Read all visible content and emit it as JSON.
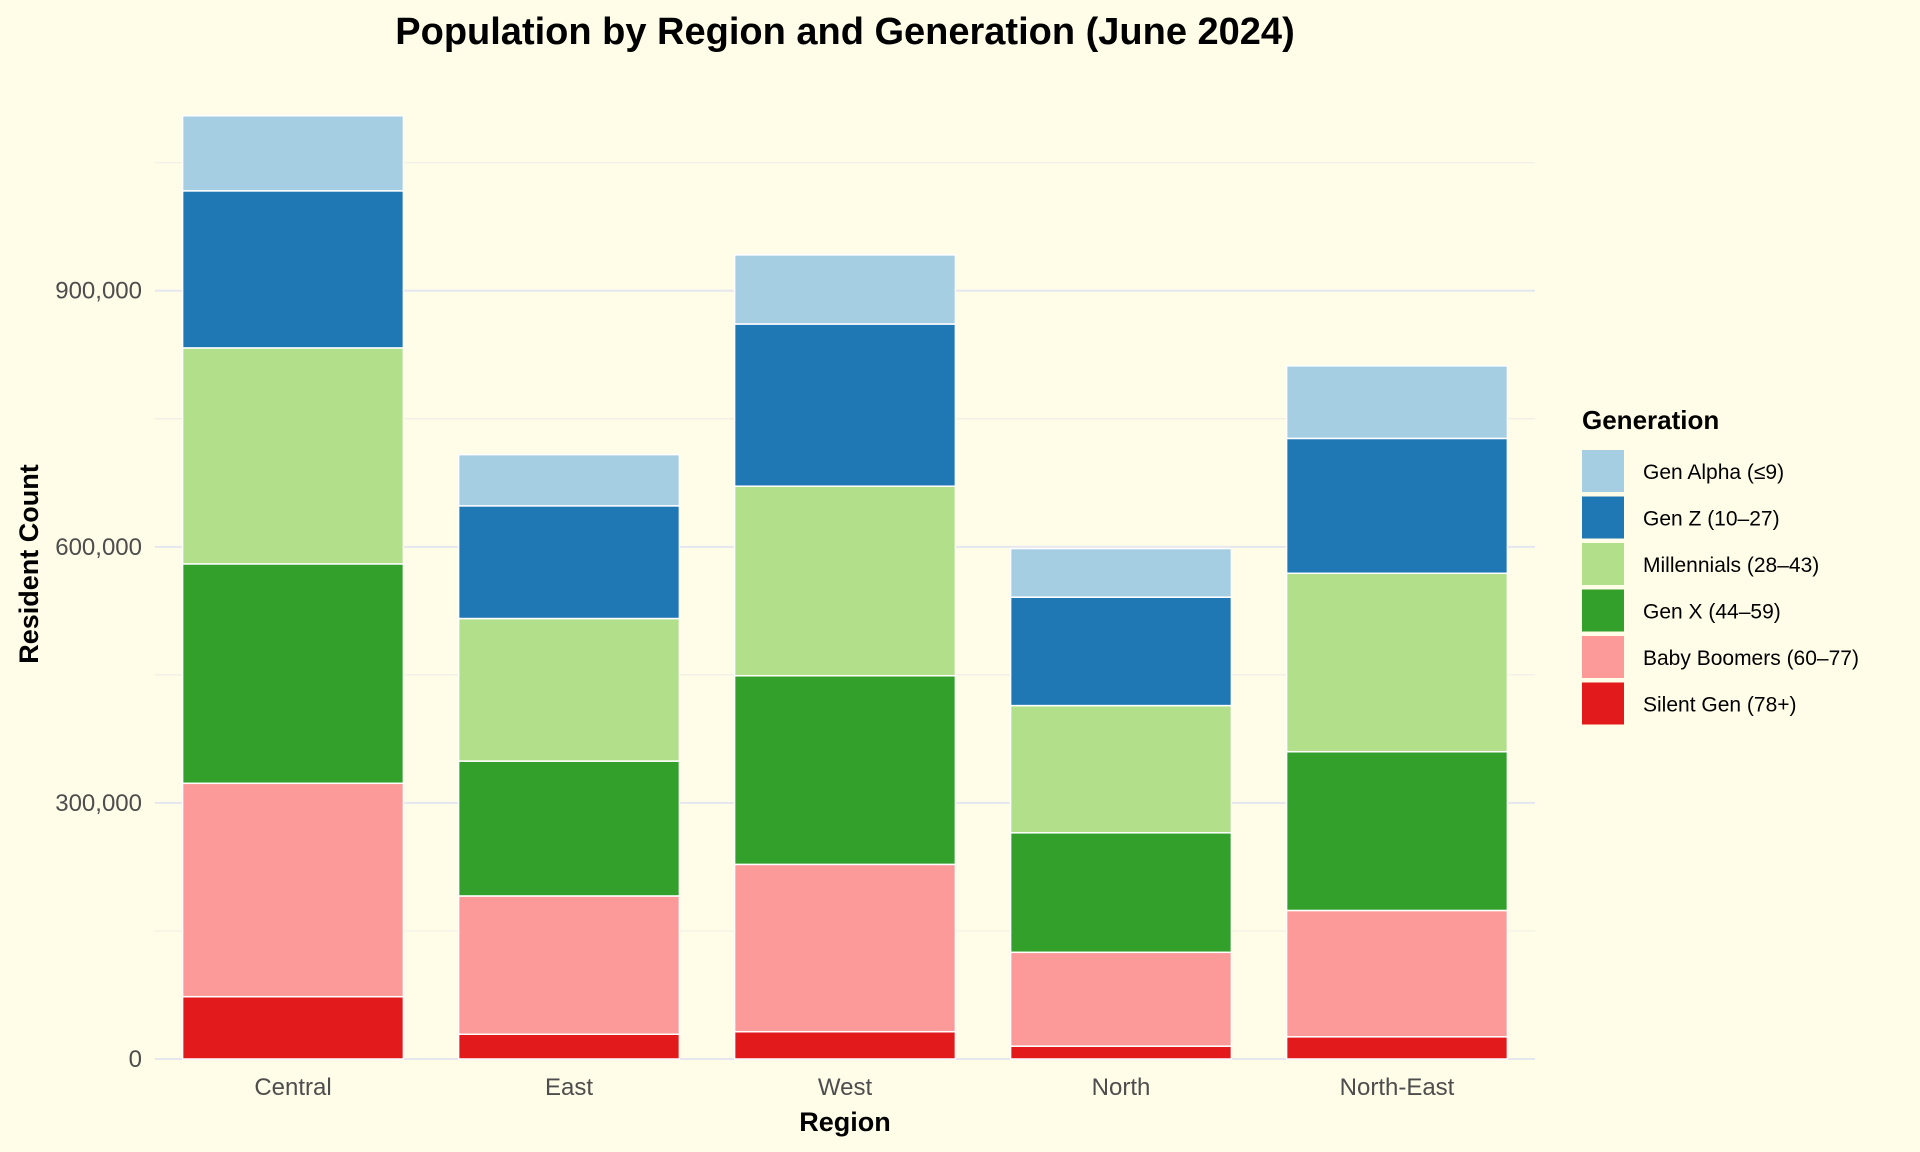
{
  "chart_data": {
    "type": "bar",
    "stacked": true,
    "title": "Population by Region and Generation (June 2024)",
    "xlabel": "Region",
    "ylabel": "Resident Count",
    "categories": [
      "Central",
      "East",
      "West",
      "North",
      "North-East"
    ],
    "ylim": [
      0,
      1100000
    ],
    "yticks": [
      0,
      300000,
      600000,
      900000
    ],
    "ytick_labels": [
      "0",
      "300,000",
      "600,000",
      "900,000"
    ],
    "grid": true,
    "legend": {
      "title": "Generation",
      "placement": "right"
    },
    "series": [
      {
        "name": "Silent Gen (78+)",
        "color": "#e31a1c",
        "values": [
          73000,
          29000,
          32000,
          15000,
          26000
        ]
      },
      {
        "name": "Baby Boomers (60–77)",
        "color": "#fb9a99",
        "values": [
          250000,
          162000,
          196000,
          110000,
          148000
        ]
      },
      {
        "name": "Gen X (44–59)",
        "color": "#33a02c",
        "values": [
          257000,
          158000,
          221000,
          140000,
          186000
        ]
      },
      {
        "name": "Millennials (28–43)",
        "color": "#b2df8a",
        "values": [
          253000,
          167000,
          222000,
          149000,
          209000
        ]
      },
      {
        "name": "Gen Z (10–27)",
        "color": "#1f78b4",
        "values": [
          184000,
          132000,
          190000,
          127000,
          158000
        ]
      },
      {
        "name": "Gen Alpha (≤9)",
        "color": "#a6cee3",
        "values": [
          88000,
          60000,
          81000,
          57000,
          85000
        ]
      }
    ]
  }
}
